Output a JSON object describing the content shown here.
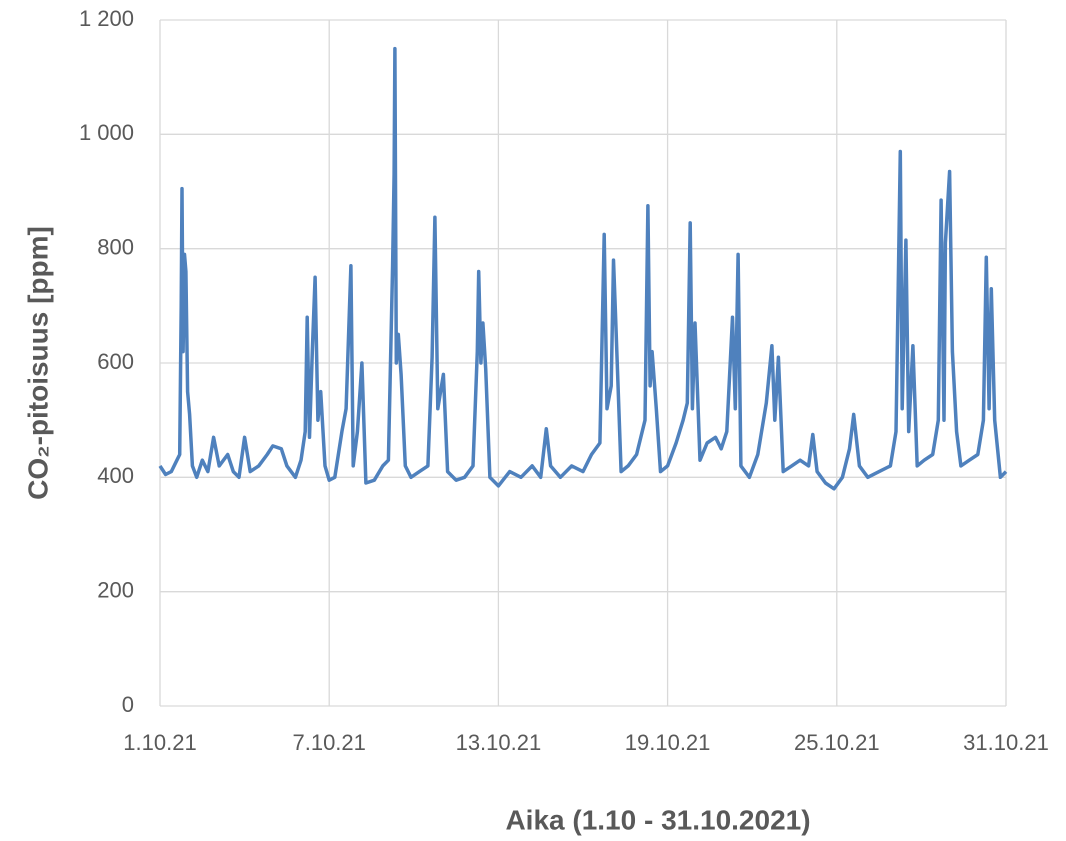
{
  "chart_data": {
    "type": "line",
    "x_label": "Aika (1.10 - 31.10.2021)",
    "y_label": "CO₂-pitoisuus [ppm]",
    "x": [
      1.0,
      1.2,
      1.4,
      1.6,
      1.7,
      1.75,
      1.78,
      1.82,
      1.87,
      1.92,
      1.98,
      2.05,
      2.15,
      2.3,
      2.5,
      2.7,
      2.9,
      3.1,
      3.4,
      3.6,
      3.8,
      4.0,
      4.2,
      4.5,
      4.8,
      5.0,
      5.3,
      5.5,
      5.8,
      6.0,
      6.15,
      6.22,
      6.3,
      6.4,
      6.5,
      6.6,
      6.7,
      6.85,
      7.0,
      7.2,
      7.45,
      7.6,
      7.77,
      7.85,
      8.0,
      8.16,
      8.3,
      8.6,
      8.9,
      9.1,
      9.25,
      9.3,
      9.33,
      9.38,
      9.45,
      9.55,
      9.7,
      9.9,
      10.2,
      10.5,
      10.65,
      10.75,
      10.85,
      11.05,
      11.2,
      11.5,
      11.8,
      12.1,
      12.25,
      12.3,
      12.38,
      12.45,
      12.55,
      12.7,
      13.0,
      13.4,
      13.8,
      14.2,
      14.5,
      14.7,
      14.85,
      15.2,
      15.6,
      16.0,
      16.3,
      16.6,
      16.75,
      16.85,
      17.0,
      17.08,
      17.15,
      17.35,
      17.6,
      17.9,
      18.2,
      18.3,
      18.38,
      18.45,
      18.6,
      18.75,
      19.0,
      19.3,
      19.55,
      19.7,
      19.8,
      19.88,
      19.97,
      20.15,
      20.4,
      20.7,
      20.9,
      21.1,
      21.3,
      21.4,
      21.5,
      21.6,
      21.9,
      22.2,
      22.5,
      22.7,
      22.8,
      22.93,
      23.1,
      23.4,
      23.7,
      24.0,
      24.15,
      24.3,
      24.6,
      24.9,
      25.2,
      25.45,
      25.6,
      25.8,
      26.1,
      26.5,
      26.9,
      27.1,
      27.25,
      27.32,
      27.45,
      27.55,
      27.7,
      27.85,
      28.1,
      28.4,
      28.6,
      28.7,
      28.8,
      28.85,
      29.0,
      29.1,
      29.25,
      29.4,
      29.7,
      30.0,
      30.2,
      30.3,
      30.4,
      30.48,
      30.6,
      30.8,
      31.0
    ],
    "series": [
      {
        "color": "#4f81bd",
        "values": [
          420,
          405,
          410,
          430,
          440,
          700,
          905,
          620,
          790,
          760,
          550,
          510,
          420,
          400,
          430,
          410,
          470,
          420,
          440,
          410,
          400,
          470,
          410,
          420,
          440,
          455,
          450,
          420,
          400,
          430,
          480,
          680,
          470,
          620,
          750,
          500,
          550,
          420,
          395,
          400,
          480,
          520,
          770,
          420,
          480,
          600,
          390,
          395,
          420,
          430,
          770,
          930,
          1150,
          600,
          650,
          580,
          420,
          400,
          410,
          420,
          610,
          855,
          520,
          580,
          410,
          395,
          400,
          420,
          620,
          760,
          600,
          670,
          590,
          400,
          385,
          410,
          400,
          420,
          400,
          485,
          420,
          400,
          420,
          410,
          440,
          460,
          825,
          520,
          560,
          780,
          690,
          410,
          420,
          440,
          500,
          875,
          560,
          620,
          520,
          410,
          420,
          460,
          500,
          530,
          845,
          520,
          670,
          430,
          460,
          470,
          450,
          480,
          680,
          520,
          790,
          420,
          400,
          440,
          530,
          630,
          500,
          610,
          410,
          420,
          430,
          420,
          475,
          410,
          390,
          380,
          400,
          450,
          510,
          420,
          400,
          410,
          420,
          480,
          970,
          520,
          815,
          480,
          630,
          420,
          430,
          440,
          500,
          885,
          500,
          810,
          935,
          620,
          480,
          420,
          430,
          440,
          500,
          785,
          520,
          730,
          500,
          400,
          410
        ]
      }
    ],
    "xlim": [
      1,
      31
    ],
    "xticks": [
      {
        "value": 1,
        "label": "1.10.21"
      },
      {
        "value": 7,
        "label": "7.10.21"
      },
      {
        "value": 13,
        "label": "13.10.21"
      },
      {
        "value": 19,
        "label": "19.10.21"
      },
      {
        "value": 25,
        "label": "25.10.21"
      },
      {
        "value": 31,
        "label": "31.10.21"
      }
    ],
    "ylim": [
      0,
      1200
    ],
    "yticks": [
      0,
      200,
      400,
      600,
      800,
      {
        "value": 1000,
        "label": "1 000"
      },
      {
        "value": 1200,
        "label": "1 200"
      }
    ],
    "grid": true
  }
}
